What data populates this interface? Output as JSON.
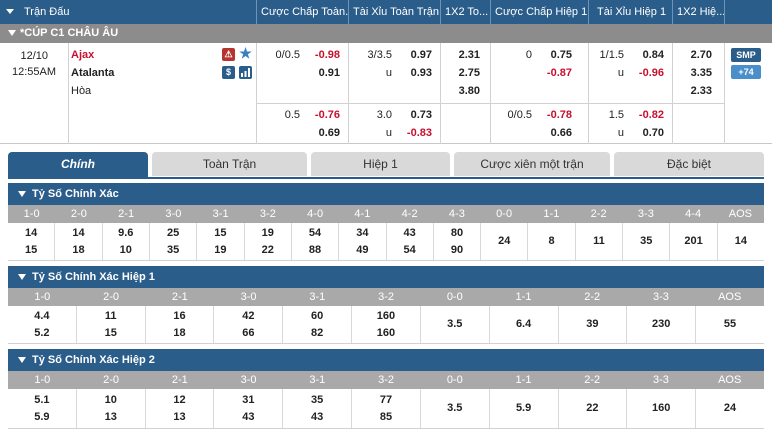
{
  "header": {
    "cols": [
      "Trận Đấu",
      "Cược Chấp Toàn...",
      "Tài Xỉu Toàn Trận",
      "1X2 To...",
      "Cược Chấp Hiệp 1",
      "Tài Xỉu Hiệp 1",
      "1X2 Hiệ..."
    ]
  },
  "league": {
    "name": "*CÚP C1 CHÂU ÂU"
  },
  "match": {
    "date": "12/10",
    "time": "12:55AM",
    "home": "Ajax",
    "away": "Atalanta",
    "draw": "Hòa",
    "badge_smp": "SMP",
    "badge_count": "+74",
    "icons": {
      "fav": "star-icon",
      "money": "$",
      "stats": "bar-chart-icon",
      "warn": "alert-icon"
    },
    "row1": {
      "ah_line": "0/0.5",
      "ah_home": "-0.98",
      "ah_away": "0.91",
      "ou_line": "3/3.5",
      "ou_over": "0.97",
      "ou_u": "u",
      "ou_under": "0.93",
      "x_home": "2.31",
      "x_away": "2.75",
      "x_draw": "3.80",
      "h1_ah_line": "0",
      "h1_ah_home": "0.75",
      "h1_ah_away": "-0.87",
      "h1_ou_line": "1/1.5",
      "h1_ou_over": "0.84",
      "h1_ou_u": "u",
      "h1_ou_under": "-0.96",
      "h1_x_home": "2.70",
      "h1_x_away": "3.35",
      "h1_x_draw": "2.33"
    },
    "row2": {
      "ah_line": "0.5",
      "ah_home": "-0.76",
      "ah_away": "0.69",
      "ou_line": "3.0",
      "ou_over": "0.73",
      "ou_u": "u",
      "ou_under": "-0.83",
      "h1_ah_line": "0/0.5",
      "h1_ah_home": "-0.78",
      "h1_ah_away": "0.66",
      "h1_ou_line": "1.5",
      "h1_ou_over": "-0.82",
      "h1_ou_u": "u",
      "h1_ou_under": "0.70"
    }
  },
  "tabs": [
    "Chính",
    "Toàn Trận",
    "Hiệp 1",
    "Cược xiên một trận",
    "Đặc biệt"
  ],
  "sections": [
    {
      "title": "Tỷ Số Chính Xác",
      "headers": [
        "1-0",
        "2-0",
        "2-1",
        "3-0",
        "3-1",
        "3-2",
        "4-0",
        "4-1",
        "4-2",
        "4-3",
        "0-0",
        "1-1",
        "2-2",
        "3-3",
        "4-4",
        "AOS"
      ],
      "top": [
        "14",
        "14",
        "9.6",
        "25",
        "15",
        "19",
        "54",
        "34",
        "43",
        "80",
        "24",
        "8",
        "11",
        "35",
        "201",
        "14"
      ],
      "bottom": [
        "15",
        "18",
        "10",
        "35",
        "19",
        "22",
        "88",
        "49",
        "54",
        "90",
        "",
        "",
        "",
        "",
        "",
        ""
      ]
    },
    {
      "title": "Tỷ Số Chính Xác Hiệp 1",
      "headers": [
        "1-0",
        "2-0",
        "2-1",
        "3-0",
        "3-1",
        "3-2",
        "0-0",
        "1-1",
        "2-2",
        "3-3",
        "AOS"
      ],
      "top": [
        "4.4",
        "11",
        "16",
        "42",
        "60",
        "160",
        "3.5",
        "6.4",
        "39",
        "230",
        "55"
      ],
      "bottom": [
        "5.2",
        "15",
        "18",
        "66",
        "82",
        "160",
        "",
        "",
        "",
        "",
        ""
      ]
    },
    {
      "title": "Tỷ Số Chính Xác Hiệp 2",
      "headers": [
        "1-0",
        "2-0",
        "2-1",
        "3-0",
        "3-1",
        "3-2",
        "0-0",
        "1-1",
        "2-2",
        "3-3",
        "AOS"
      ],
      "top": [
        "5.1",
        "10",
        "12",
        "31",
        "35",
        "77",
        "3.5",
        "5.9",
        "22",
        "160",
        "24"
      ],
      "bottom": [
        "5.9",
        "13",
        "13",
        "43",
        "43",
        "85",
        "",
        "",
        "",
        "",
        ""
      ]
    }
  ],
  "colors": {
    "header_bg": "#2b5d8a",
    "league_bg": "#8c8c8c",
    "neg": "#c8102e",
    "sub_head": "#a9a9a9"
  }
}
